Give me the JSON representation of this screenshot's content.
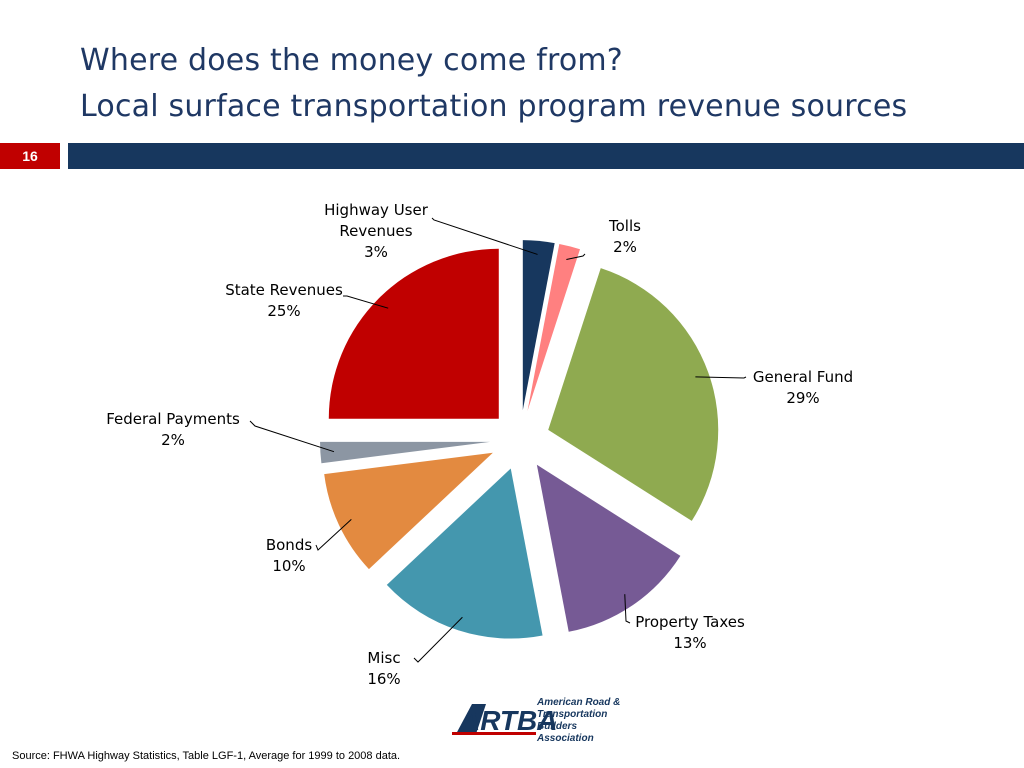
{
  "slide": {
    "title_line1": "Where does the money come from?",
    "title_line2": "Local surface transportation program revenue sources",
    "number": "16",
    "source": "Source: FHWA Highway Statistics, Table LGF-1, Average for 1999 to 2008 data."
  },
  "logo": {
    "wordmark": "ARTBA",
    "line1": "American Road &",
    "line2": "Transportation Builders",
    "line3": "Association"
  },
  "colors": {
    "title": "#1f3864",
    "slide_number_bg": "#c00000",
    "title_bar": "#17375e"
  },
  "chart_data": {
    "type": "pie",
    "exploded": true,
    "units": "%",
    "slices": [
      {
        "label": "Highway User Revenues",
        "label_lines": [
          "Highway User",
          "Revenues"
        ],
        "pct_text": "3%",
        "value": 3,
        "color": "#17375e"
      },
      {
        "label": "Tolls",
        "label_lines": [
          "Tolls"
        ],
        "pct_text": "2%",
        "value": 2,
        "color": "#ff8080"
      },
      {
        "label": "General Fund",
        "label_lines": [
          "General Fund"
        ],
        "pct_text": "29%",
        "value": 29,
        "color": "#8faa50"
      },
      {
        "label": "Property Taxes",
        "label_lines": [
          "Property Taxes"
        ],
        "pct_text": "13%",
        "value": 13,
        "color": "#765a95"
      },
      {
        "label": "Misc",
        "label_lines": [
          "Misc"
        ],
        "pct_text": "16%",
        "value": 16,
        "color": "#4497ae"
      },
      {
        "label": "Bonds",
        "label_lines": [
          "Bonds"
        ],
        "pct_text": "10%",
        "value": 10,
        "color": "#e38a40"
      },
      {
        "label": "Federal Payments",
        "label_lines": [
          "Federal Payments"
        ],
        "pct_text": "2%",
        "value": 2,
        "color": "#8c96a3"
      },
      {
        "label": "State Revenues",
        "label_lines": [
          "State Revenues"
        ],
        "pct_text": "25%",
        "value": 25,
        "color": "#c00000"
      }
    ]
  }
}
